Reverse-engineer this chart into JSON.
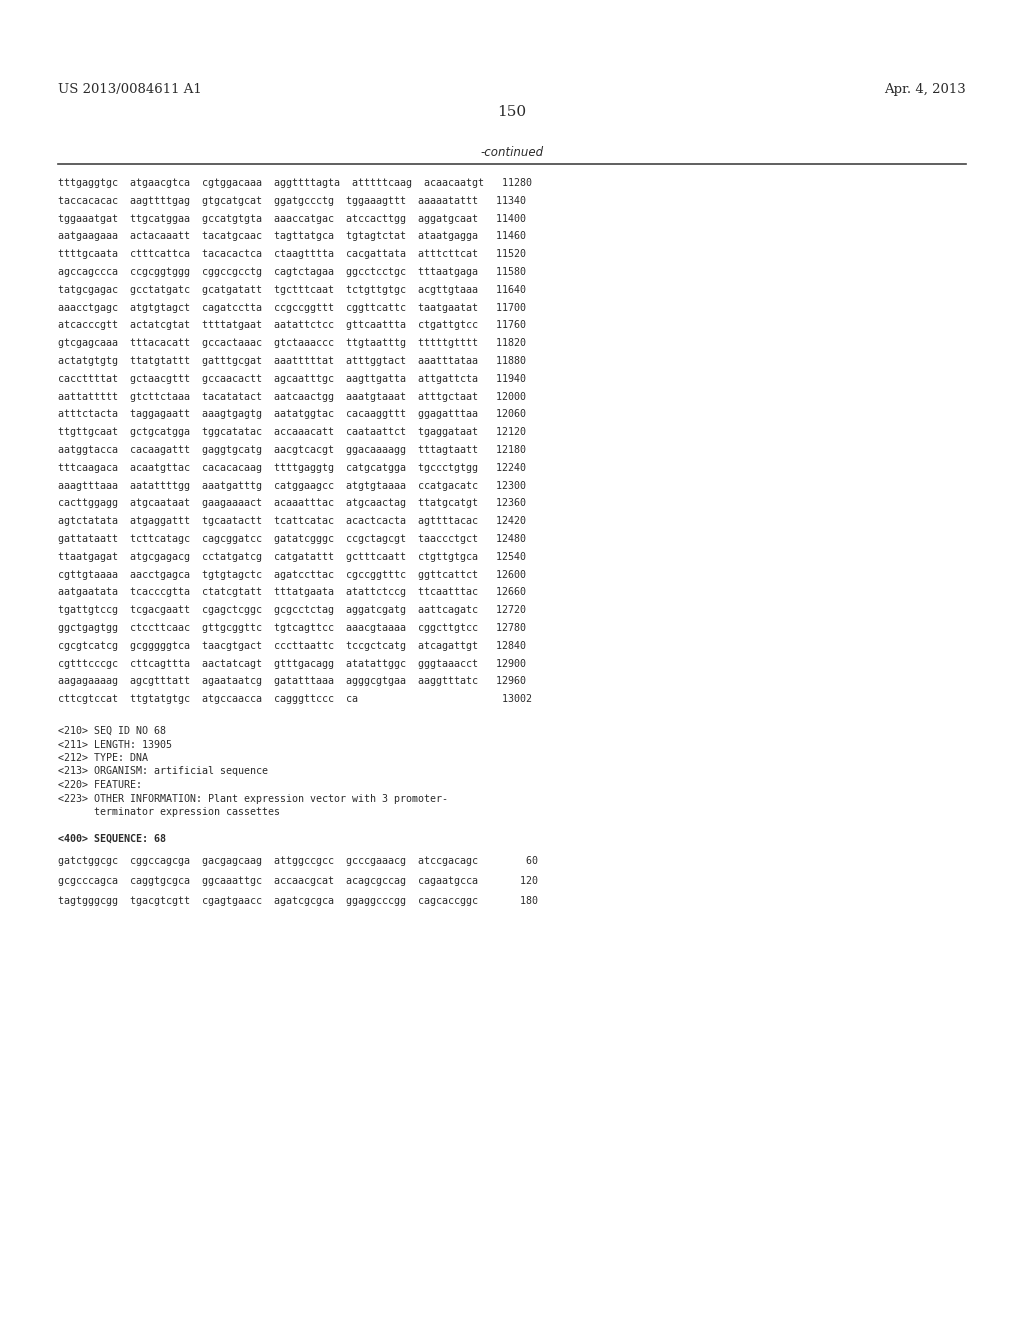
{
  "header_left": "US 2013/0084611 A1",
  "header_right": "Apr. 4, 2013",
  "page_number": "150",
  "continued_label": "-continued",
  "background_color": "#ffffff",
  "text_color": "#2b2b2b",
  "sequence_lines": [
    "tttgaggtgc  atgaacgtca  cgtggacaaa  aggttttagta  atttttcaag  acaacaatgt   11280",
    "taccacacac  aagttttgag  gtgcatgcat  ggatgccctg  tggaaagttt  aaaaatattt   11340",
    "tggaaatgat  ttgcatggaa  gccatgtgta  aaaccatgac  atccacttgg  aggatgcaat   11400",
    "aatgaagaaa  actacaaatt  tacatgcaac  tagttatgca  tgtagtctat  ataatgagga   11460",
    "ttttgcaata  ctttcattca  tacacactca  ctaagtttta  cacgattata  atttcttcat   11520",
    "agccagccca  ccgcggtggg  cggccgcctg  cagtctagaa  ggcctcctgc  tttaatgaga   11580",
    "tatgcgagac  gcctatgatc  gcatgatatt  tgctttcaat  tctgttgtgc  acgttgtaaa   11640",
    "aaacctgagc  atgtgtagct  cagatcctta  ccgccggttt  cggttcattc  taatgaatat   11700",
    "atcacccgtt  actatcgtat  ttttatgaat  aatattctcc  gttcaattta  ctgattgtcc   11760",
    "gtcgagcaaa  tttacacatt  gccactaaac  gtctaaaccc  ttgtaatttg  tttttgtttt   11820",
    "actatgtgtg  ttatgtattt  gatttgcgat  aaatttttat  atttggtact  aaatttataa   11880",
    "caccttttat  gctaacgttt  gccaacactt  agcaatttgc  aagttgatta  attgattcta   11940",
    "aattattttt  gtcttctaaa  tacatatact  aatcaactgg  aaatgtaaat  atttgctaat   12000",
    "atttctacta  taggagaatt  aaagtgagtg  aatatggtac  cacaaggttt  ggagatttaa   12060",
    "ttgttgcaat  gctgcatgga  tggcatatac  accaaacatt  caataattct  tgaggataat   12120",
    "aatggtacca  cacaagattt  gaggtgcatg  aacgtcacgt  ggacaaaagg  tttagtaatt   12180",
    "tttcaagaca  acaatgttac  cacacacaag  ttttgaggtg  catgcatgga  tgccctgtgg   12240",
    "aaagtttaaa  aatattttgg  aaatgatttg  catggaagcc  atgtgtaaaa  ccatgacatc   12300",
    "cacttggagg  atgcaataat  gaagaaaact  acaaatttac  atgcaactag  ttatgcatgt   12360",
    "agtctatata  atgaggattt  tgcaatactt  tcattcatac  acactcacta  agttttacac   12420",
    "gattataatt  tcttcatagc  cagcggatcc  gatatcgggc  ccgctagcgt  taaccctgct   12480",
    "ttaatgagat  atgcgagacg  cctatgatcg  catgatattt  gctttcaatt  ctgttgtgca   12540",
    "cgttgtaaaa  aacctgagca  tgtgtagctc  agatccttac  cgccggtttc  ggttcattct   12600",
    "aatgaatata  tcacccgtta  ctatcgtatt  tttatgaata  atattctccg  ttcaatttac   12660",
    "tgattgtccg  tcgacgaatt  cgagctcggc  gcgcctctag  aggatcgatg  aattcagatc   12720",
    "ggctgagtgg  ctccttcaac  gttgcggttc  tgtcagttcc  aaacgtaaaa  cggcttgtcc   12780",
    "cgcgtcatcg  gcgggggtca  taacgtgact  cccttaattc  tccgctcatg  atcagattgt   12840",
    "cgtttcccgc  cttcagttta  aactatcagt  gtttgacagg  atatattggc  gggtaaacct   12900",
    "aagagaaaag  agcgtttatt  agaataatcg  gatatttaaa  agggcgtgaa  aaggtttatc   12960",
    "cttcgtccat  ttgtatgtgc  atgccaacca  cagggttccc  ca                        13002"
  ],
  "meta_info_lines": [
    "<210> SEQ ID NO 68",
    "<211> LENGTH: 13905",
    "<212> TYPE: DNA",
    "<213> ORGANISM: artificial sequence",
    "<220> FEATURE:",
    "<223> OTHER INFORMATION: Plant expression vector with 3 promoter-",
    "      terminator expression cassettes"
  ],
  "seq_header": "<400> SEQUENCE: 68",
  "bottom_seq_lines": [
    "gatctggcgc  cggccagcga  gacgagcaag  attggccgcc  gcccgaaacg  atccgacagc        60",
    "gcgcccagca  caggtgcgca  ggcaaattgc  accaacgcat  acagcgccag  cagaatgcca       120",
    "tagtgggcgg  tgacgtcgtt  cgagtgaacc  agatcgcgca  ggaggcccgg  cagcaccggc       180"
  ]
}
